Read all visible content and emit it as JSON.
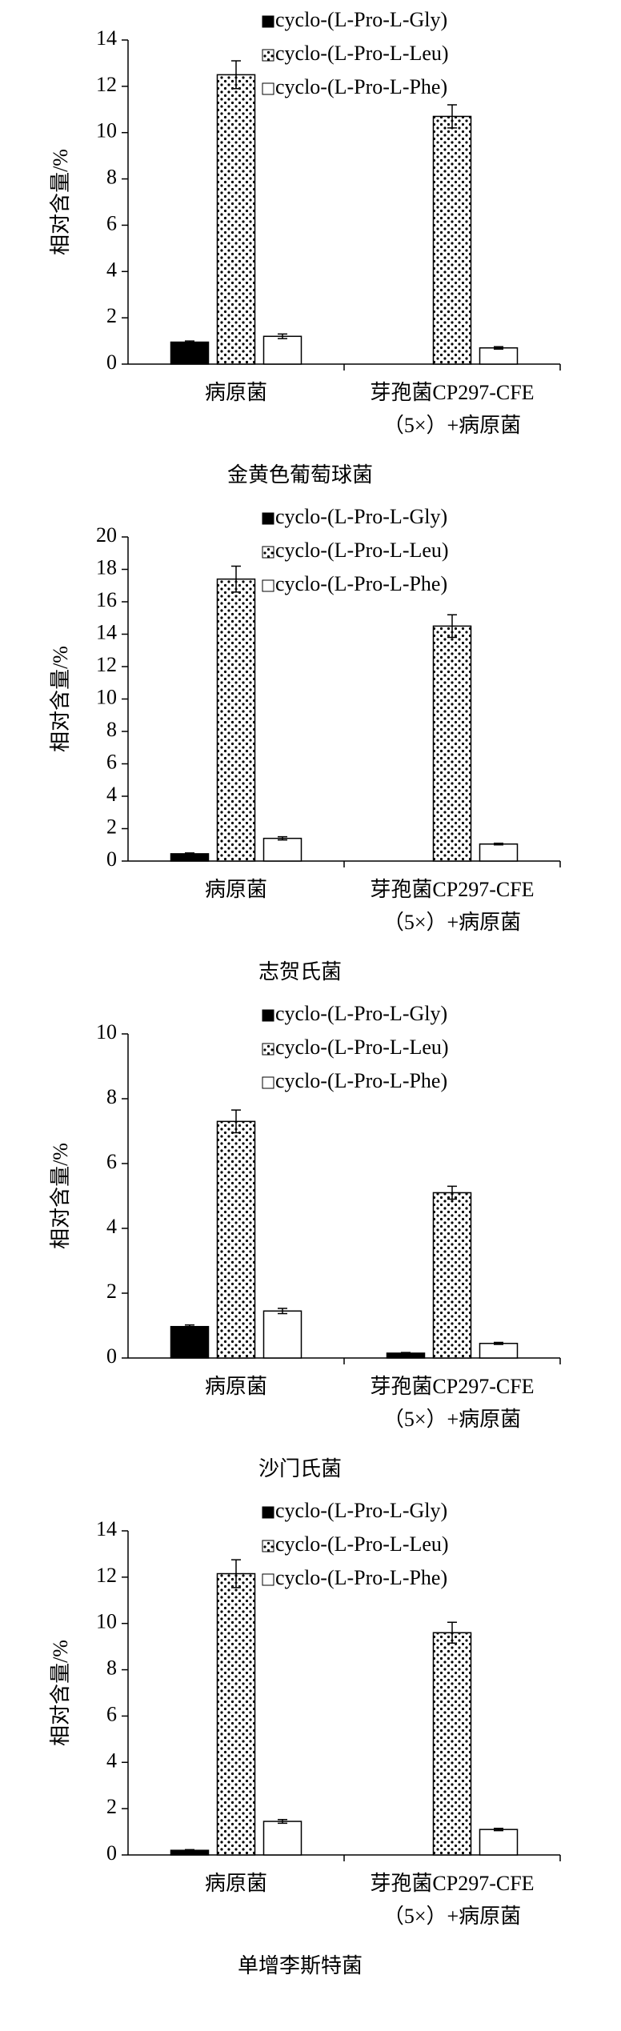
{
  "chart_data": [
    {
      "type": "bar",
      "title": "金黄色葡萄球菌",
      "ylabel": "相对含量/%",
      "categories": [
        "病原菌",
        "芽孢菌CP297-CFE\n（5×）+病原菌"
      ],
      "ylim": [
        0,
        14
      ],
      "yticks": [
        0,
        2,
        4,
        6,
        8,
        10,
        12,
        14
      ],
      "series": [
        {
          "name": "cyclo-(L-Pro-L-Gly)",
          "color": "#000000",
          "values": [
            0.95,
            0
          ],
          "errors": [
            0.05,
            0
          ]
        },
        {
          "name": "cyclo-(L-Pro-L-Leu)",
          "color": "#ffffff",
          "pattern": "dots",
          "values": [
            12.5,
            10.7
          ],
          "errors": [
            0.6,
            0.5
          ]
        },
        {
          "name": "cyclo-(L-Pro-L-Phe)",
          "color": "#ffffff",
          "values": [
            1.2,
            0.7
          ],
          "errors": [
            0.1,
            0.05
          ]
        }
      ]
    },
    {
      "type": "bar",
      "title": "志贺氏菌",
      "ylabel": "相对含量/%",
      "categories": [
        "病原菌",
        "芽孢菌CP297-CFE\n（5×）+病原菌"
      ],
      "ylim": [
        0,
        20
      ],
      "yticks": [
        0,
        2,
        4,
        6,
        8,
        10,
        12,
        14,
        16,
        18,
        20
      ],
      "series": [
        {
          "name": "cyclo-(L-Pro-L-Gly)",
          "color": "#000000",
          "values": [
            0.45,
            0
          ],
          "errors": [
            0.05,
            0
          ]
        },
        {
          "name": "cyclo-(L-Pro-L-Leu)",
          "color": "#ffffff",
          "pattern": "dots",
          "values": [
            17.4,
            14.5
          ],
          "errors": [
            0.8,
            0.7
          ]
        },
        {
          "name": "cyclo-(L-Pro-L-Phe)",
          "color": "#ffffff",
          "values": [
            1.4,
            1.05
          ],
          "errors": [
            0.1,
            0.05
          ]
        }
      ]
    },
    {
      "type": "bar",
      "title": "沙门氏菌",
      "ylabel": "相对含量/%",
      "categories": [
        "病原菌",
        "芽孢菌CP297-CFE\n（5×）+病原菌"
      ],
      "ylim": [
        0,
        10
      ],
      "yticks": [
        0,
        2,
        4,
        6,
        8,
        10
      ],
      "series": [
        {
          "name": "cyclo-(L-Pro-L-Gly)",
          "color": "#000000",
          "values": [
            0.97,
            0.15
          ],
          "errors": [
            0.05,
            0.02
          ]
        },
        {
          "name": "cyclo-(L-Pro-L-Leu)",
          "color": "#ffffff",
          "pattern": "dots",
          "values": [
            7.3,
            5.1
          ],
          "errors": [
            0.35,
            0.2
          ]
        },
        {
          "name": "cyclo-(L-Pro-L-Phe)",
          "color": "#ffffff",
          "values": [
            1.45,
            0.45
          ],
          "errors": [
            0.08,
            0.03
          ]
        }
      ]
    },
    {
      "type": "bar",
      "title": "单增李斯特菌",
      "ylabel": "相对含量/%",
      "categories": [
        "病原菌",
        "芽孢菌CP297-CFE\n（5×）+病原菌"
      ],
      "ylim": [
        0,
        14
      ],
      "yticks": [
        0,
        2,
        4,
        6,
        8,
        10,
        12,
        14
      ],
      "series": [
        {
          "name": "cyclo-(L-Pro-L-Gly)",
          "color": "#000000",
          "values": [
            0.2,
            0
          ],
          "errors": [
            0.03,
            0
          ]
        },
        {
          "name": "cyclo-(L-Pro-L-Leu)",
          "color": "#ffffff",
          "pattern": "dots",
          "values": [
            12.15,
            9.6
          ],
          "errors": [
            0.6,
            0.45
          ]
        },
        {
          "name": "cyclo-(L-Pro-L-Phe)",
          "color": "#ffffff",
          "values": [
            1.45,
            1.1
          ],
          "errors": [
            0.08,
            0.05
          ]
        }
      ]
    }
  ]
}
